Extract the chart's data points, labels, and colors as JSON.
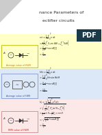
{
  "title_line1": "nance Parameters of",
  "title_line2": "ectifier circuits",
  "pdf_bg": "#1a3a4a",
  "pdf_text": "PDF",
  "section1_bg": "#ffffc8",
  "section2_bg": "#dce8f8",
  "section3_bg": "#fde8e8",
  "label1_color": "#cc7700",
  "label2_color": "#3355aa",
  "label3_color": "#cc2222",
  "label1": "Average value of HWR",
  "label2": "Average value of FWR",
  "label3": "RMS value of HWR",
  "formula_color": "#222222",
  "title_fontsize": 4.5,
  "formula_fontsize": 2.6,
  "label_fontsize": 2.3
}
